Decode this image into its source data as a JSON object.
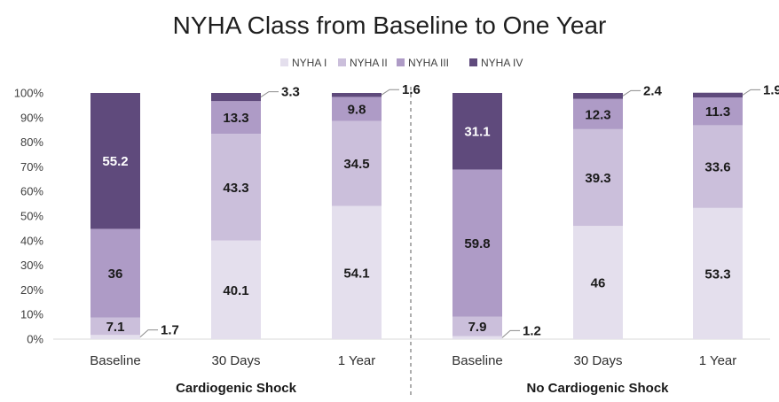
{
  "chart_data": {
    "type": "bar",
    "stacked": true,
    "title": "NYHA Class from Baseline to One Year",
    "legend": {
      "placement": "top",
      "entries": [
        "NYHA I",
        "NYHA II",
        "NYHA III",
        "NYHA IV"
      ]
    },
    "colors": {
      "NYHA I": "#e4dfed",
      "NYHA II": "#cbbfdb",
      "NYHA III": "#ae9bc6",
      "NYHA IV": "#5f4a7c"
    },
    "ylim": [
      0,
      100
    ],
    "yticks": [
      "0%",
      "10%",
      "20%",
      "30%",
      "40%",
      "50%",
      "60%",
      "70%",
      "80%",
      "90%",
      "100%"
    ],
    "grid": false,
    "groups": [
      {
        "name": "Cardiogenic Shock",
        "categories": [
          "Baseline",
          "30 Days",
          "1 Year"
        ],
        "series": [
          {
            "name": "NYHA I",
            "values": [
              1.7,
              40.1,
              54.1
            ]
          },
          {
            "name": "NYHA II",
            "values": [
              7.1,
              43.3,
              34.5
            ]
          },
          {
            "name": "NYHA III",
            "values": [
              36,
              13.3,
              9.8
            ]
          },
          {
            "name": "NYHA IV",
            "values": [
              55.2,
              3.3,
              1.6
            ]
          }
        ]
      },
      {
        "name": "No Cardiogenic Shock",
        "categories": [
          "Baseline",
          "30 Days",
          "1 Year"
        ],
        "series": [
          {
            "name": "NYHA I",
            "values": [
              1.2,
              46,
              53.3
            ]
          },
          {
            "name": "NYHA II",
            "values": [
              7.9,
              39.3,
              33.6
            ]
          },
          {
            "name": "NYHA III",
            "values": [
              59.8,
              12.3,
              11.3
            ]
          },
          {
            "name": "NYHA IV",
            "values": [
              31.1,
              2.4,
              1.9
            ]
          }
        ]
      }
    ]
  }
}
